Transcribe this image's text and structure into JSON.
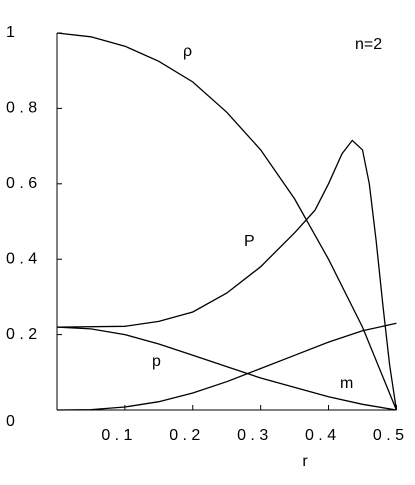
{
  "chart_data": {
    "type": "line",
    "xlabel": "r",
    "annotations": [
      "ρ",
      "P",
      "p",
      "m",
      "n=2"
    ],
    "xlim": [
      0,
      0.52
    ],
    "ylim": [
      0,
      1
    ],
    "xticks": [
      {
        "value": 0.1,
        "label": "0 . 1"
      },
      {
        "value": 0.2,
        "label": "0 . 2"
      },
      {
        "value": 0.3,
        "label": "0 . 3"
      },
      {
        "value": 0.4,
        "label": "0 . 4"
      },
      {
        "value": 0.5,
        "label": "0 . 5"
      }
    ],
    "yticks": [
      0,
      {
        "value": 0.2,
        "label": "0 . 2"
      },
      {
        "value": 0.4,
        "label": "0 . 4"
      },
      {
        "value": 0.6,
        "label": "0 . 6"
      },
      {
        "value": 0.8,
        "label": "0 . 8"
      },
      1
    ],
    "color": "#000000",
    "series": [
      {
        "x": [
          0,
          0.05,
          0.1,
          0.15,
          0.2,
          0.25,
          0.3,
          0.35,
          0.4,
          0.45,
          0.5
        ],
        "values": [
          1,
          0.99,
          0.965,
          0.925,
          0.87,
          0.79,
          0.69,
          0.56,
          0.4,
          0.22,
          0
        ]
      },
      {
        "x": [
          0,
          0.1,
          0.15,
          0.2,
          0.25,
          0.3,
          0.35,
          0.38,
          0.4,
          0.42,
          0.435,
          0.45,
          0.46,
          0.47,
          0.48,
          0.49,
          0.5
        ],
        "values": [
          0.22,
          0.222,
          0.235,
          0.26,
          0.31,
          0.38,
          0.47,
          0.53,
          0.6,
          0.68,
          0.715,
          0.69,
          0.6,
          0.45,
          0.28,
          0.12,
          0
        ]
      },
      {
        "x": [
          0,
          0.05,
          0.1,
          0.15,
          0.2,
          0.25,
          0.3,
          0.35,
          0.4,
          0.45,
          0.5
        ],
        "values": [
          0.22,
          0.215,
          0.2,
          0.175,
          0.145,
          0.115,
          0.085,
          0.06,
          0.035,
          0.015,
          0
        ]
      },
      {
        "x": [
          0,
          0.05,
          0.1,
          0.15,
          0.2,
          0.25,
          0.3,
          0.35,
          0.4,
          0.45,
          0.5
        ],
        "values": [
          0,
          0.001,
          0.008,
          0.022,
          0.045,
          0.075,
          0.11,
          0.145,
          0.18,
          0.21,
          0.23
        ]
      }
    ]
  }
}
